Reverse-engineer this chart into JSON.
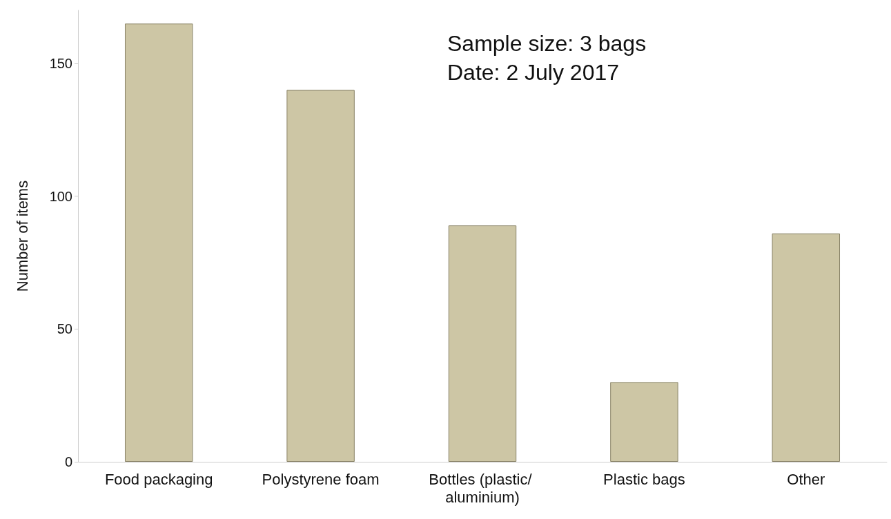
{
  "chart_data": {
    "type": "bar",
    "ylabel": "Number of items",
    "categories": [
      "Food packaging",
      "Polystyrene foam",
      "Bottles (plastic/ aluminium)",
      "Plastic bags",
      "Other"
    ],
    "values": [
      165,
      140,
      89,
      30,
      86
    ],
    "color": "#cdc6a5",
    "ylim": [
      0,
      170
    ],
    "yticks": [
      0,
      50,
      100,
      150
    ],
    "grid": false,
    "annotations": [
      "Sample size: 3 bags",
      "Date: 2 July 2017"
    ]
  }
}
